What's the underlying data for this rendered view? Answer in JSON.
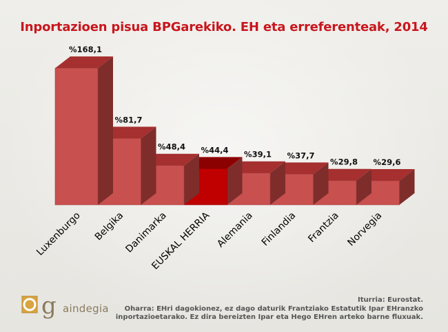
{
  "chart_data": {
    "type": "bar",
    "title": "Inportazioen pisua BPGarekiko. EH eta erreferenteak, 2014",
    "xlabel": "",
    "ylabel": "",
    "ylim": [
      0,
      180
    ],
    "categories": [
      "Luxenburgo",
      "Belgika",
      "Danimarka",
      "EUSKAL HERRIA",
      "Alemania",
      "Finlandia",
      "Frantzia",
      "Norvegia"
    ],
    "values": [
      168.1,
      81.7,
      48.4,
      44.4,
      39.1,
      37.7,
      29.8,
      29.6
    ],
    "value_labels": [
      "%168,1",
      "%81,7",
      "%48,4",
      "%44,4",
      "%39,1",
      "%37,7",
      "%29,8",
      "%29,6"
    ],
    "highlight_index": 3,
    "colors": {
      "bar_front": "#c8504e",
      "bar_top": "#a5302f",
      "bar_side": "#7e2d2b",
      "highlight_front": "#c00000",
      "highlight_top": "#8b0000",
      "title": "#c8161d"
    },
    "grid": false,
    "legend": "none"
  },
  "footer": {
    "source": "Iturria: Eurostat.",
    "note_line1": "Oharra: EHri dagokionez, ez dago daturik Frantziako Estatutik Ipar EHranzko",
    "note_line2": "inportazioetarako. Ez dira bereizten Ipar eta Hego EHren arteko barne fluxuak."
  },
  "logo": {
    "name": "gaindegia-logo",
    "text": "aindegia"
  }
}
